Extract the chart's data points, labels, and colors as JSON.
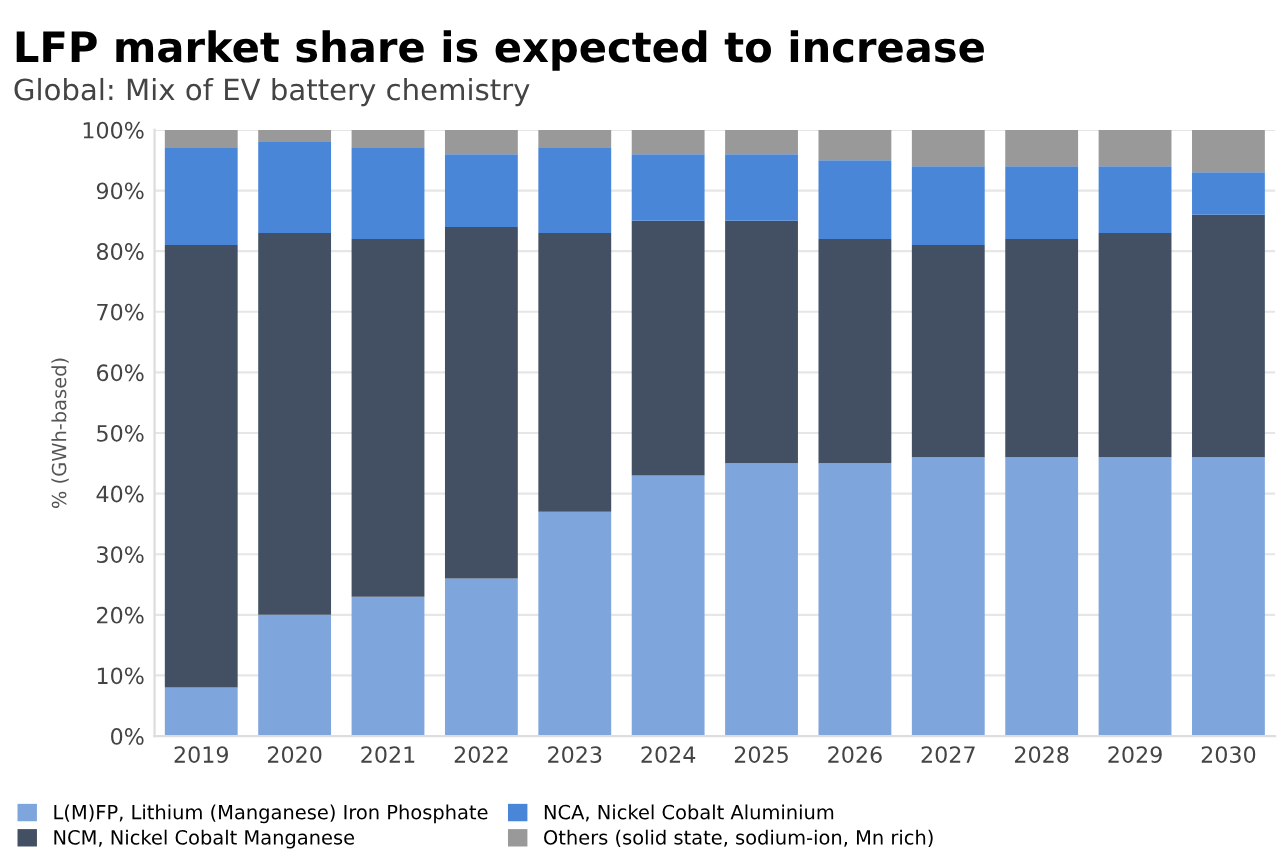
{
  "chart_data": {
    "type": "bar",
    "title": "LFP market share is expected to increase",
    "subtitle": "Global: Mix of EV battery chemistry",
    "ylabel": "% (GWh-based)",
    "categories": [
      "2019",
      "2020",
      "2021",
      "2022",
      "2023",
      "2024",
      "2025",
      "2026",
      "2027",
      "2028",
      "2029",
      "2030"
    ],
    "stacked": true,
    "series": [
      {
        "name": "L(M)FP, Lithium (Manganese) Iron Phosphate",
        "color": "#7fa6dc",
        "values": [
          8,
          20,
          23,
          26,
          37,
          43,
          45,
          45,
          46,
          46,
          46,
          46
        ]
      },
      {
        "name": "NCM, Nickel Cobalt Manganese",
        "color": "#435063",
        "values": [
          73,
          63,
          59,
          58,
          46,
          42,
          40,
          37,
          35,
          36,
          37,
          40
        ]
      },
      {
        "name": "NCA, Nickel Cobalt Aluminium",
        "color": "#4a86d8",
        "values": [
          16,
          15,
          15,
          12,
          14,
          11,
          11,
          13,
          13,
          12,
          11,
          7
        ]
      },
      {
        "name": "Others (solid state, sodium-ion, Mn rich)",
        "color": "#999999",
        "values": [
          3,
          2,
          3,
          4,
          3,
          4,
          4,
          5,
          6,
          6,
          6,
          7
        ]
      }
    ],
    "ylim": [
      0,
      100
    ],
    "yticks": [
      {
        "value": 0,
        "label": "0%"
      },
      {
        "value": 10,
        "label": "10%"
      },
      {
        "value": 20,
        "label": "20%"
      },
      {
        "value": 30,
        "label": "30%"
      },
      {
        "value": 40,
        "label": "40%"
      },
      {
        "value": 50,
        "label": "50%"
      },
      {
        "value": 60,
        "label": "60%"
      },
      {
        "value": 70,
        "label": "70%"
      },
      {
        "value": 80,
        "label": "80%"
      },
      {
        "value": 90,
        "label": "90%"
      },
      {
        "value": 100,
        "label": "100%"
      }
    ],
    "grid": "y",
    "legend": "bottom"
  }
}
